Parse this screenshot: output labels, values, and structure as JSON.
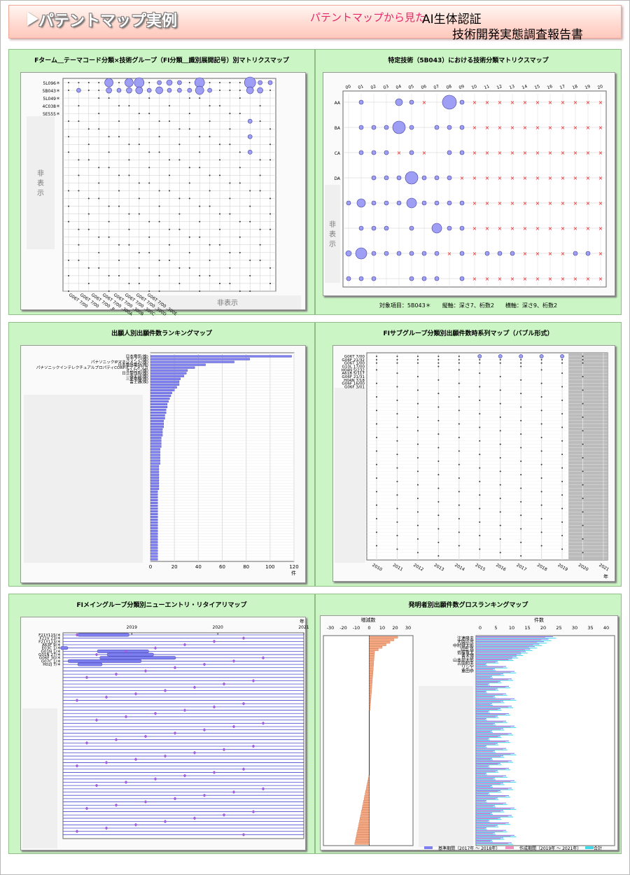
{
  "header": {
    "title": "パテントマップ実例",
    "subtitle_pink": "パテントマップから見た",
    "subtitle_line1": "AI生体認証",
    "subtitle_line2": "技術開発実態調査報告書"
  },
  "colors": {
    "panel_bg": "#ccf5c5",
    "bubble": "#9e9ef5",
    "bar_blue": "#7d7ef0",
    "bar_pink": "#f08cbe",
    "bar_cyan": "#40d8e8",
    "bar_orange": "#f6a883",
    "cross": "#ee2222",
    "diamond": "#a060e0"
  },
  "chart_data": [
    {
      "id": "matrix_fterm",
      "type": "scatter",
      "title": "Fターム＿テーマコード分類×技術グループ（FI分類＿識別展開記号）別マトリクスマップ",
      "y_labels": [
        "5L096＊",
        "5B043＊",
        "5L049＊",
        "4C038＊",
        "5E555＊"
      ],
      "hidden_label_left": "非表示",
      "hidden_label_bottom": "非表示",
      "x_labels": [
        "G06T 7/00",
        "G06T 7/00",
        "G06T 7/00 ,P",
        "G06T 7/00 ,300A",
        "G06T 7/00 ,300B",
        "G06T 7/00 ,300C",
        "G06T 7/00 ,300D",
        "G06T 7/00 ,300E"
      ],
      "top_row_sizes": [
        2,
        2,
        2,
        2,
        6,
        2,
        6,
        7,
        2,
        3,
        4,
        3,
        2,
        7,
        2,
        2,
        2,
        2,
        8,
        3,
        3
      ],
      "second_row_sizes": [
        2,
        3,
        2,
        2,
        4,
        3,
        4,
        5,
        3,
        5,
        3,
        3,
        3,
        6,
        3,
        2,
        2,
        2,
        5,
        4,
        2
      ]
    },
    {
      "id": "matrix_5b043",
      "type": "scatter",
      "title": "特定技術（5B043）における技術分類マトリクスマップ",
      "x_labels": [
        "00",
        "01",
        "02",
        "03",
        "04",
        "05",
        "06",
        "07",
        "08",
        "09",
        "10",
        "11",
        "12",
        "13",
        "14",
        "15",
        "16",
        "17",
        "18",
        "19",
        "20"
      ],
      "y_labels": [
        "AA",
        "BA",
        "CA",
        "DA"
      ],
      "hidden_label": "非表示",
      "footer": "対象項目：5B043＊　　縦軸：深さ7、桁数2　　横軸：深さ9、桁数2",
      "rows": [
        [
          0,
          3,
          0,
          0,
          5,
          3,
          0,
          0,
          10,
          3,
          0,
          0,
          0,
          0,
          0,
          0,
          0,
          0,
          0,
          0,
          0
        ],
        [
          0,
          3,
          3,
          3,
          9,
          3,
          0,
          2,
          3,
          3,
          0,
          0,
          0,
          0,
          0,
          0,
          0,
          0,
          0,
          0,
          0
        ],
        [
          0,
          2,
          2,
          2,
          0,
          2,
          0,
          0,
          3,
          3,
          0,
          0,
          0,
          0,
          0,
          0,
          0,
          0,
          0,
          0,
          0
        ],
        [
          0,
          0,
          2,
          2,
          2,
          9,
          2,
          2,
          2,
          0,
          0,
          0,
          0,
          0,
          0,
          0,
          0,
          0,
          0,
          0,
          0
        ],
        [
          2,
          6,
          2,
          3,
          3,
          7,
          3,
          3,
          2,
          2,
          0,
          0,
          0,
          0,
          0,
          0,
          0,
          0,
          0,
          0,
          0
        ],
        [
          0,
          3,
          3,
          2,
          0,
          3,
          0,
          7,
          3,
          2,
          0,
          0,
          0,
          0,
          0,
          0,
          0,
          0,
          0,
          0,
          0
        ],
        [
          4,
          8,
          2,
          3,
          3,
          3,
          2,
          2,
          0,
          2,
          0,
          3,
          2,
          3,
          0,
          0,
          0,
          0,
          3,
          3,
          0
        ],
        [
          2,
          2,
          2,
          0,
          0,
          2,
          2,
          2,
          0,
          2,
          0,
          0,
          0,
          0,
          0,
          0,
          0,
          0,
          0,
          0,
          0
        ]
      ]
    },
    {
      "id": "applicant_ranking",
      "type": "bar",
      "title": "出願人別出願件数ランキングマップ",
      "categories": [
        "日本電気(株)",
        "キヤノン(株)",
        "パナソニックIPマネジメント(株)",
        "日本電信電話(株)",
        "パナソニックインテレクチュアルプロパティCORPオブアメリカ",
        "オムロン(株)",
        "日立製作所(株)",
        "みずほ(株)",
        "三菱電機(株)",
        "富士通(株)"
      ],
      "values": [
        118,
        83,
        70,
        46,
        37,
        31,
        30,
        28,
        25,
        24
      ],
      "other_values": [
        24,
        22,
        20,
        18,
        17,
        16,
        15,
        14,
        14,
        13,
        13,
        12,
        12,
        11,
        11,
        11,
        10,
        10,
        10,
        9,
        9,
        9,
        9,
        8,
        8,
        8,
        8,
        8,
        8,
        7,
        7,
        7,
        7,
        7,
        7,
        7,
        7,
        7,
        6,
        6,
        6,
        6,
        6,
        6,
        6,
        6,
        6,
        6,
        6,
        6,
        6,
        6,
        6,
        6,
        6,
        6,
        6,
        6,
        6,
        6,
        6,
        6,
        6
      ],
      "xlim": [
        0,
        120
      ],
      "xticks": [
        0,
        20,
        40,
        60,
        80,
        100,
        120
      ],
      "xunit": "件"
    },
    {
      "id": "fi_subgroup_timeline",
      "type": "scatter",
      "title": "FIサブグループ分類別出願件数時系列マップ（バブル形式）",
      "y_labels": [
        "G06T 7/00",
        "G06F 21/32",
        "G06T 1/00",
        "G10L 17/00",
        "H04N 5/232",
        "A61B 5/117",
        "G06F 21/31",
        "H04N 7/18",
        "G06F 16/00",
        "G06F 3/01"
      ],
      "x_labels": [
        "2010",
        "2011",
        "2012",
        "2013",
        "2014",
        "2015",
        "2016",
        "2017",
        "2018",
        "2019",
        "2020",
        "2021"
      ],
      "xunit": "年"
    },
    {
      "id": "fi_main_entry_retire",
      "type": "gantt",
      "title": "FIメイングループ分類別ニューエントリ・リタイアリマップ",
      "y_labels": [
        "F21Y115/＊",
        "F21V 23/＊",
        "F21Y113/＊",
        "A63F 9/＊",
        "E03C 1/＊",
        "G01N 1/＊",
        "G01N 27/＊",
        "G06F 30/＊",
        "G07C 1/＊",
        "H02J 7/＊"
      ],
      "x_labels": [
        "2019",
        "2020",
        "2021"
      ],
      "xunit": "年"
    },
    {
      "id": "inventor_ranking",
      "type": "bar",
      "title": "発明者別出願件数グロスランキングマップ",
      "left_axis_label": "増減数",
      "right_axis_label": "件数",
      "left_ticks": [
        "-30",
        "-20",
        "-10",
        "0",
        "10",
        "20",
        "30"
      ],
      "right_ticks": [
        "0",
        "5",
        "10",
        "15",
        "20",
        "25",
        "30",
        "35",
        "40"
      ],
      "categories": [
        "注連隆夫",
        "大園正彦",
        "中村健太郎",
        "沼田 昌",
        "佐藤竜太",
        "青木博",
        "山本部太郎",
        "古田和夫",
        "リシヤ",
        "重田恭"
      ],
      "legend": [
        "基準期間（2017年 ～ 2018年）",
        "作成期間（2019年 ～ 2021年）",
        "合計"
      ]
    }
  ]
}
